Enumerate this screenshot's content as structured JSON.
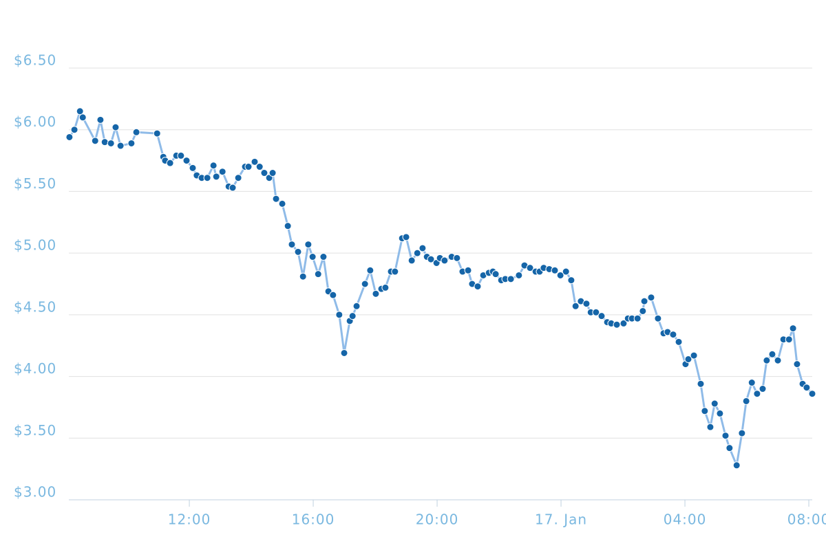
{
  "chart_data": {
    "type": "line",
    "x": [
      8.13,
      8.29,
      8.47,
      8.56,
      8.96,
      9.13,
      9.27,
      9.47,
      9.62,
      9.78,
      10.13,
      10.29,
      10.96,
      11.16,
      11.22,
      11.38,
      11.58,
      11.73,
      11.91,
      12.11,
      12.24,
      12.4,
      12.58,
      12.78,
      12.87,
      13.07,
      13.27,
      13.4,
      13.58,
      13.8,
      13.91,
      14.11,
      14.27,
      14.42,
      14.58,
      14.69,
      14.8,
      15.0,
      15.18,
      15.31,
      15.51,
      15.67,
      15.84,
      15.98,
      16.16,
      16.33,
      16.49,
      16.64,
      16.84,
      17.0,
      17.18,
      17.27,
      17.4,
      17.67,
      17.84,
      18.02,
      18.2,
      18.33,
      18.51,
      18.64,
      18.87,
      19.0,
      19.18,
      19.36,
      19.53,
      19.67,
      19.8,
      19.98,
      20.09,
      20.24,
      20.47,
      20.64,
      20.82,
      21.0,
      21.13,
      21.31,
      21.49,
      21.67,
      21.8,
      21.89,
      22.07,
      22.2,
      22.38,
      22.64,
      22.82,
      23.0,
      23.18,
      23.31,
      23.44,
      23.62,
      23.8,
      23.98,
      24.16,
      24.33,
      24.47,
      24.64,
      24.82,
      24.96,
      25.13,
      25.31,
      25.49,
      25.62,
      25.8,
      26.02,
      26.16,
      26.29,
      26.47,
      26.64,
      26.69,
      26.91,
      27.13,
      27.31,
      27.44,
      27.62,
      27.8,
      28.02,
      28.11,
      28.29,
      28.51,
      28.64,
      28.82,
      28.96,
      29.13,
      29.31,
      29.44,
      29.67,
      29.84,
      29.98,
      30.16,
      30.33,
      30.51,
      30.64,
      30.82,
      31.0,
      31.18,
      31.36,
      31.49,
      31.62,
      31.8,
      31.93,
      32.11
    ],
    "series": [
      {
        "color": "#8fbbe8",
        "marker_color": "#1565a8",
        "values": [
          5.94,
          6.0,
          6.15,
          6.1,
          5.91,
          6.08,
          5.9,
          5.89,
          6.02,
          5.87,
          5.89,
          5.98,
          5.97,
          5.78,
          5.75,
          5.73,
          5.79,
          5.79,
          5.75,
          5.69,
          5.63,
          5.61,
          5.61,
          5.71,
          5.62,
          5.66,
          5.54,
          5.53,
          5.61,
          5.7,
          5.7,
          5.74,
          5.7,
          5.65,
          5.61,
          5.65,
          5.44,
          5.4,
          5.22,
          5.07,
          5.01,
          4.81,
          5.07,
          4.97,
          4.83,
          4.97,
          4.69,
          4.66,
          4.5,
          4.19,
          4.45,
          4.49,
          4.57,
          4.75,
          4.86,
          4.67,
          4.71,
          4.72,
          4.85,
          4.85,
          5.12,
          5.13,
          4.94,
          5.0,
          5.04,
          4.97,
          4.95,
          4.92,
          4.96,
          4.94,
          4.97,
          4.96,
          4.85,
          4.86,
          4.75,
          4.73,
          4.82,
          4.84,
          4.85,
          4.83,
          4.78,
          4.79,
          4.79,
          4.82,
          4.9,
          4.88,
          4.85,
          4.85,
          4.88,
          4.87,
          4.86,
          4.82,
          4.85,
          4.78,
          4.57,
          4.61,
          4.59,
          4.52,
          4.52,
          4.49,
          4.44,
          4.43,
          4.42,
          4.43,
          4.47,
          4.47,
          4.47,
          4.53,
          4.61,
          4.64,
          4.47,
          4.35,
          4.36,
          4.34,
          4.28,
          4.1,
          4.14,
          4.17,
          3.94,
          3.72,
          3.59,
          3.78,
          3.7,
          3.52,
          3.42,
          3.28,
          3.54,
          3.8,
          3.95,
          3.86,
          3.9,
          4.13,
          4.18,
          4.13,
          4.3,
          4.3,
          4.39,
          4.1,
          3.94,
          3.91,
          3.86
        ]
      }
    ],
    "xlim": [
      8.11,
      32.11
    ],
    "xticks": [
      {
        "value": 12,
        "label": "12:00"
      },
      {
        "value": 16,
        "label": "16:00"
      },
      {
        "value": 20,
        "label": "20:00"
      },
      {
        "value": 24,
        "label": "17. Jan"
      },
      {
        "value": 28,
        "label": "04:00"
      },
      {
        "value": 32,
        "label": "08:00"
      }
    ],
    "ylim": [
      3,
      6.5
    ],
    "yticks": [
      {
        "value": 3,
        "label": "$3.00"
      },
      {
        "value": 3.5,
        "label": "$3.50"
      },
      {
        "value": 4,
        "label": "$4.00"
      },
      {
        "value": 4.5,
        "label": "$4.50"
      },
      {
        "value": 5,
        "label": "$5.00"
      },
      {
        "value": 5.5,
        "label": "$5.50"
      },
      {
        "value": 6,
        "label": "$6.00"
      },
      {
        "value": 6.5,
        "label": "$6.50"
      }
    ],
    "grid": true
  }
}
